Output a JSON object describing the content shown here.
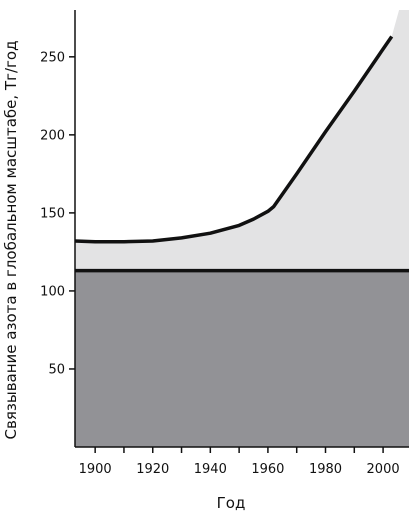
{
  "chart_data": {
    "type": "area",
    "title": "",
    "xlabel": "Год",
    "ylabel": "Связывание азота в глобальном масштабе, Тг/год",
    "xlim": [
      1893,
      2009
    ],
    "ylim": [
      0,
      280
    ],
    "x_ticks": [
      1900,
      1920,
      1940,
      1960,
      1980,
      2000
    ],
    "y_ticks": [
      50,
      100,
      150,
      200,
      250
    ],
    "grid": false,
    "legend": "none",
    "series": [
      {
        "values_x": [
          1893,
          2009
        ],
        "values_y": [
          113,
          113
        ],
        "fill": "#929296",
        "stroke": "#111111"
      },
      {
        "values_x": [
          1893,
          1900,
          1910,
          1920,
          1930,
          1940,
          1950,
          1955,
          1960,
          1962,
          1970,
          1980,
          1990,
          2000,
          2003
        ],
        "values_y": [
          132,
          131.5,
          131.5,
          132,
          134,
          137,
          142,
          146,
          151,
          154,
          175,
          202,
          228,
          255,
          263
        ],
        "fill": "#e3e3e4",
        "stroke": "#111111"
      }
    ]
  }
}
